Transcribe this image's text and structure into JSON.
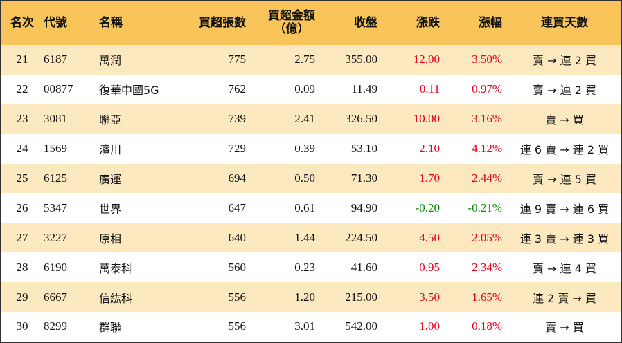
{
  "headers": {
    "rank": "名次",
    "code": "代號",
    "name": "名稱",
    "lots": "買超張數",
    "amount_line1": "買超金額",
    "amount_line2": "（億）",
    "close": "收盤",
    "change": "漲跌",
    "pct": "漲幅",
    "streak": "連買天數"
  },
  "rows": [
    {
      "rank": "21",
      "code": "6187",
      "name": "萬潤",
      "lots": "775",
      "amount": "2.75",
      "close": "355.00",
      "change": "12.00",
      "pct": "3.50%",
      "streak": "賣 → 連 2 買",
      "trend": "up"
    },
    {
      "rank": "22",
      "code": "00877",
      "name": "復華中國5G",
      "lots": "762",
      "amount": "0.09",
      "close": "11.49",
      "change": "0.11",
      "pct": "0.97%",
      "streak": "賣 → 連 2 買",
      "trend": "up"
    },
    {
      "rank": "23",
      "code": "3081",
      "name": "聯亞",
      "lots": "739",
      "amount": "2.41",
      "close": "326.50",
      "change": "10.00",
      "pct": "3.16%",
      "streak": "賣 → 買",
      "trend": "up"
    },
    {
      "rank": "24",
      "code": "1569",
      "name": "濱川",
      "lots": "729",
      "amount": "0.39",
      "close": "53.10",
      "change": "2.10",
      "pct": "4.12%",
      "streak": "連 6 賣 → 連 2 買",
      "trend": "up"
    },
    {
      "rank": "25",
      "code": "6125",
      "name": "廣運",
      "lots": "694",
      "amount": "0.50",
      "close": "71.30",
      "change": "1.70",
      "pct": "2.44%",
      "streak": "賣 → 連 5 買",
      "trend": "up"
    },
    {
      "rank": "26",
      "code": "5347",
      "name": "世界",
      "lots": "647",
      "amount": "0.61",
      "close": "94.90",
      "change": "-0.20",
      "pct": "-0.21%",
      "streak": "連 9 賣 → 連 6 買",
      "trend": "down"
    },
    {
      "rank": "27",
      "code": "3227",
      "name": "原相",
      "lots": "640",
      "amount": "1.44",
      "close": "224.50",
      "change": "4.50",
      "pct": "2.05%",
      "streak": "連 3 賣 → 連 3 買",
      "trend": "up"
    },
    {
      "rank": "28",
      "code": "6190",
      "name": "萬泰科",
      "lots": "560",
      "amount": "0.23",
      "close": "41.60",
      "change": "0.95",
      "pct": "2.34%",
      "streak": "賣 → 連 4 買",
      "trend": "up"
    },
    {
      "rank": "29",
      "code": "6667",
      "name": "信紘科",
      "lots": "556",
      "amount": "1.20",
      "close": "215.00",
      "change": "3.50",
      "pct": "1.65%",
      "streak": "連 2 賣 → 買",
      "trend": "up"
    },
    {
      "rank": "30",
      "code": "8299",
      "name": "群聯",
      "lots": "556",
      "amount": "3.01",
      "close": "542.00",
      "change": "1.00",
      "pct": "0.18%",
      "streak": "賣 → 買",
      "trend": "up"
    }
  ],
  "colors": {
    "header_bg": "#f9c55a",
    "odd_row_bg": "#fde9bf",
    "up": "#e2001a",
    "down": "#0a8a0a"
  }
}
